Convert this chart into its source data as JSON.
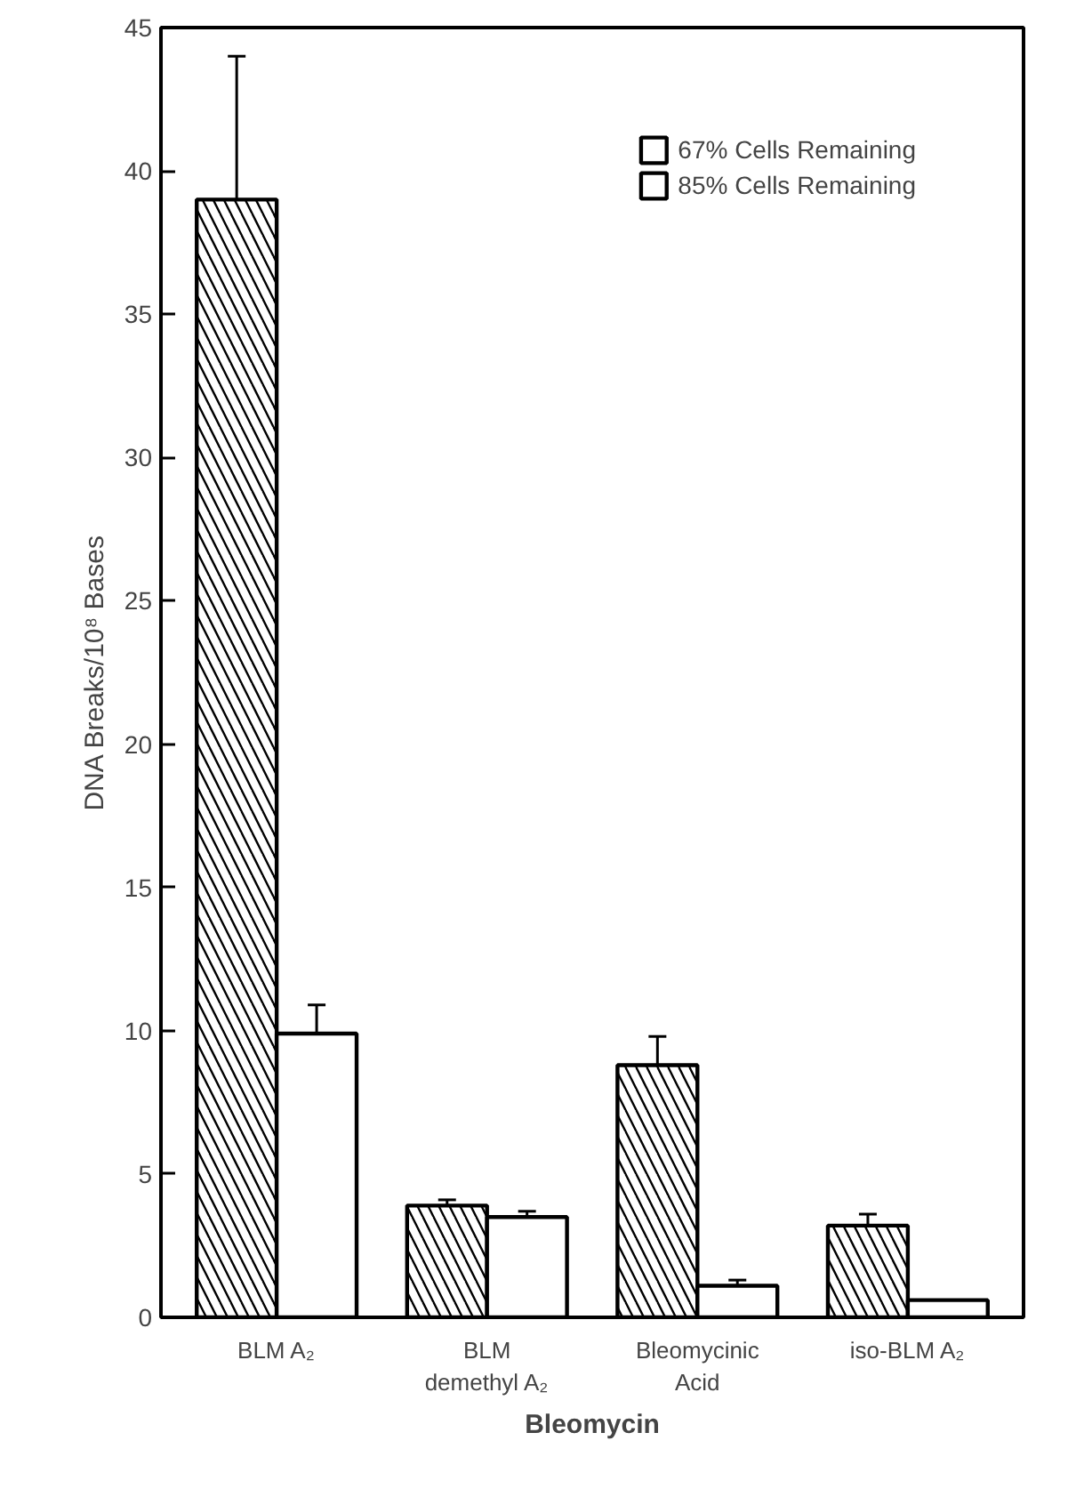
{
  "chart_data": {
    "type": "bar",
    "categories": [
      "BLM A₂",
      "BLM\ndemethyl A₂",
      "Bleomycinic\nAcid",
      "iso-BLM A₂"
    ],
    "xlabel": "Bleomycin",
    "ylabel": "DNA Breaks/10⁸ Bases",
    "series": [
      {
        "name": "67% Cells Remaining",
        "color": "#ffffff",
        "values": [
          39,
          3.9,
          8.8,
          3.2
        ],
        "errors": [
          5,
          0.2,
          1,
          0.4
        ]
      },
      {
        "name": "85% Cells Remaining",
        "color": "#ffffff",
        "values": [
          9.9,
          3.5,
          1.1,
          0.6
        ],
        "errors": [
          1,
          0.2,
          0.2,
          null
        ]
      }
    ],
    "ylim": [
      0,
      45
    ],
    "yticks": [
      0,
      5,
      10,
      15,
      20,
      25,
      30,
      35,
      40,
      45
    ],
    "grid": false,
    "legend": "top right"
  }
}
